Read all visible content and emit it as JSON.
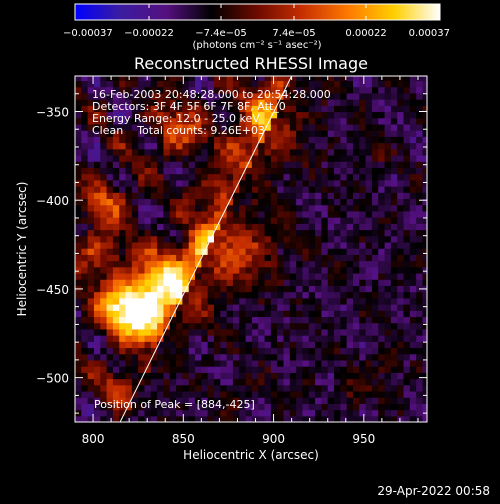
{
  "chart_data": {
    "type": "heatmap",
    "title": "Reconstructed RHESSI Image",
    "xlabel": "Heliocentric X (arcsec)",
    "ylabel": "Heliocentric Y (arcsec)",
    "xlim": [
      790,
      985
    ],
    "ylim": [
      -525,
      -330
    ],
    "x_ticks": [
      800,
      850,
      900,
      950
    ],
    "y_ticks": [
      -500,
      -450,
      -400,
      -350
    ],
    "x_tick_labels": [
      "800",
      "850",
      "900",
      "950"
    ],
    "y_tick_labels": [
      "−500",
      "−450",
      "−400",
      "−350"
    ],
    "colorbar": {
      "min": -0.00037,
      "max": 0.00037,
      "unit_label": "(photons cm⁻² s⁻¹ asec⁻²)",
      "tick_values": [
        -0.00037,
        -0.00022,
        -7.4e-05,
        7.4e-05,
        0.00022,
        0.00037
      ],
      "tick_labels": [
        "−0.00037",
        "−0.00022",
        "−7.4e−05",
        "7.4e−05",
        "0.00022",
        "0.00037"
      ],
      "colormap": [
        "#0000ff",
        "#3a1ca0",
        "#551080",
        "#000000",
        "#6e0a00",
        "#c83000",
        "#ff7a00",
        "#ffd000",
        "#ffffff"
      ]
    },
    "info_lines": [
      "16-Feb-2003 20:48:28.000 to 20:54:28.000",
      "Detectors: 3F 4F 5F 6F 7F 8F, Att_0",
      "Energy Range: 12.0 - 25.0 keV",
      "Clean    Total counts: 9.26E+03"
    ],
    "peak_label": "Position of Peak = [884,-425]",
    "peak": [
      884,
      -425
    ],
    "limb_line": {
      "from": [
        815,
        -525
      ],
      "to": [
        910,
        -330
      ]
    },
    "grid": false
  },
  "footer": {
    "timestamp": "29-Apr-2022 00:58"
  }
}
